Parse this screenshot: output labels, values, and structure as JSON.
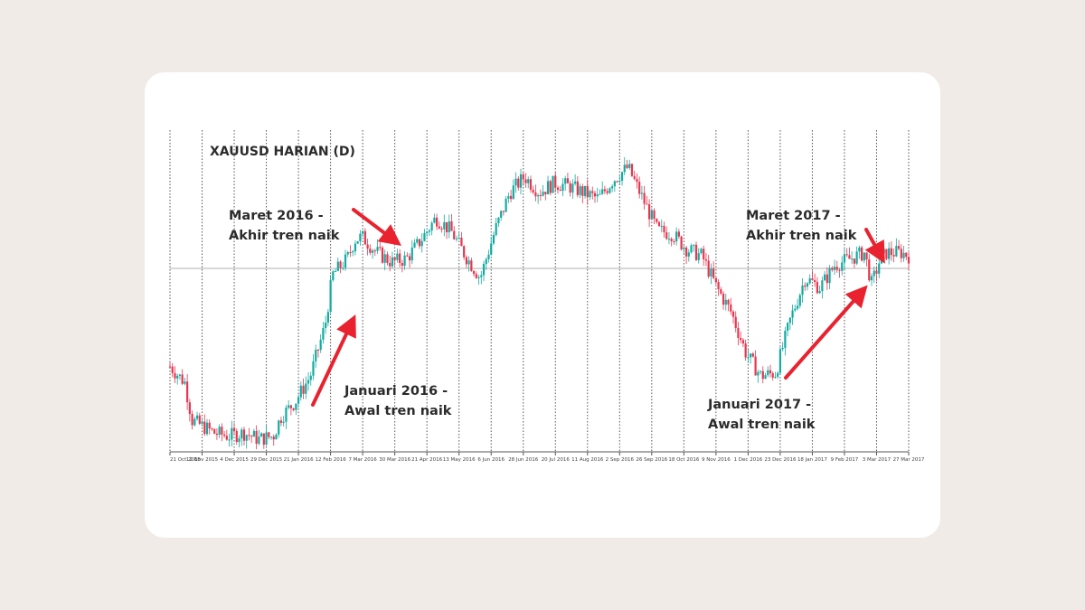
{
  "chart_data": {
    "type": "candlestick",
    "title": "XAUUSD HARIAN (D)",
    "colors": {
      "up": "#13aba1",
      "down": "#e8354f",
      "grid": "#555555",
      "level": "#bfbfbf",
      "arrow": "#e8232f"
    },
    "x_tick_labels": [
      "21 Oct 2015",
      "12 Nov 2015",
      "4 Dec 2015",
      "29 Dec 2015",
      "21 Jan 2016",
      "12 Feb 2016",
      "7 Mar 2016",
      "30 Mar 2016",
      "21 Apr 2016",
      "13 May 2016",
      "6 Jun 2016",
      "28 Jun 2016",
      "20 Jul 2016",
      "11 Aug 2016",
      "2 Sep 2016",
      "26 Sep 2016",
      "18 Oct 2016",
      "9 Nov 2016",
      "1 Dec 2016",
      "23 Dec 2016",
      "18 Jan 2017",
      "9 Feb 2017",
      "3 Mar 2017",
      "27 Mar 2017"
    ],
    "horizontal_level_fraction": 0.58,
    "price_path_fraction": [
      [
        0,
        0.27
      ],
      [
        0.02,
        0.22
      ],
      [
        0.03,
        0.1
      ],
      [
        0.06,
        0.06
      ],
      [
        0.08,
        0.05
      ],
      [
        0.1,
        0.06
      ],
      [
        0.12,
        0.04
      ],
      [
        0.14,
        0.05
      ],
      [
        0.15,
        0.11
      ],
      [
        0.17,
        0.16
      ],
      [
        0.19,
        0.24
      ],
      [
        0.21,
        0.4
      ],
      [
        0.22,
        0.56
      ],
      [
        0.24,
        0.61
      ],
      [
        0.25,
        0.67
      ],
      [
        0.26,
        0.68
      ],
      [
        0.28,
        0.63
      ],
      [
        0.3,
        0.6
      ],
      [
        0.32,
        0.61
      ],
      [
        0.34,
        0.67
      ],
      [
        0.36,
        0.74
      ],
      [
        0.38,
        0.7
      ],
      [
        0.4,
        0.62
      ],
      [
        0.42,
        0.55
      ],
      [
        0.44,
        0.7
      ],
      [
        0.46,
        0.82
      ],
      [
        0.48,
        0.87
      ],
      [
        0.5,
        0.82
      ],
      [
        0.52,
        0.85
      ],
      [
        0.54,
        0.84
      ],
      [
        0.56,
        0.82
      ],
      [
        0.58,
        0.8
      ],
      [
        0.6,
        0.86
      ],
      [
        0.62,
        0.9
      ],
      [
        0.64,
        0.8
      ],
      [
        0.66,
        0.7
      ],
      [
        0.68,
        0.69
      ],
      [
        0.7,
        0.64
      ],
      [
        0.72,
        0.62
      ],
      [
        0.74,
        0.52
      ],
      [
        0.76,
        0.44
      ],
      [
        0.78,
        0.31
      ],
      [
        0.8,
        0.24
      ],
      [
        0.82,
        0.25
      ],
      [
        0.84,
        0.42
      ],
      [
        0.86,
        0.55
      ],
      [
        0.88,
        0.52
      ],
      [
        0.9,
        0.59
      ],
      [
        0.92,
        0.61
      ],
      [
        0.94,
        0.63
      ],
      [
        0.95,
        0.53
      ],
      [
        0.96,
        0.6
      ],
      [
        0.97,
        0.63
      ],
      [
        0.99,
        0.63
      ],
      [
        1.0,
        0.62
      ]
    ],
    "annotations": [
      {
        "line1": "Maret 2016 -",
        "line2": "Akhir tren naik"
      },
      {
        "line1": "Januari 2016 -",
        "line2": "Awal tren naik"
      },
      {
        "line1": "Maret 2017 -",
        "line2": "Akhir tren naik"
      },
      {
        "line1": "Januari 2017 -",
        "line2": "Awal tren naik"
      }
    ]
  }
}
